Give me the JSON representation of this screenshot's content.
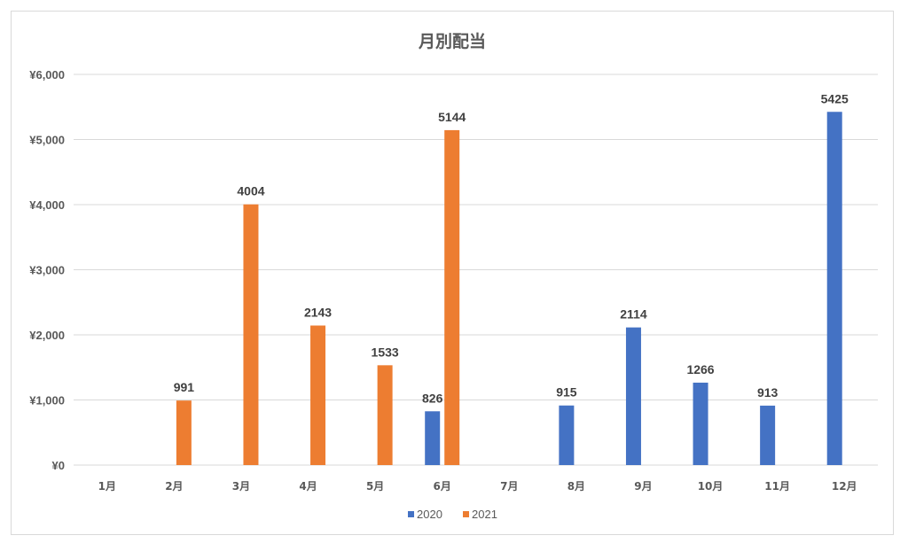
{
  "chart_data": {
    "type": "bar",
    "title": "月別配当",
    "categories": [
      "1月",
      "2月",
      "3月",
      "4月",
      "5月",
      "6月",
      "7月",
      "8月",
      "9月",
      "10月",
      "11月",
      "12月"
    ],
    "series": [
      {
        "name": "2020",
        "color": "#4472c4",
        "values": [
          null,
          null,
          null,
          null,
          null,
          826,
          null,
          915,
          2114,
          1266,
          913,
          5425
        ]
      },
      {
        "name": "2021",
        "color": "#ed7d31",
        "values": [
          null,
          991,
          4004,
          2143,
          1533,
          5144,
          null,
          null,
          null,
          null,
          null,
          null
        ]
      }
    ],
    "ylim": [
      0,
      6000
    ],
    "yticks": [
      0,
      1000,
      2000,
      3000,
      4000,
      5000,
      6000
    ],
    "ytick_labels": [
      "¥0",
      "¥1,000",
      "¥2,000",
      "¥3,000",
      "¥4,000",
      "¥5,000",
      "¥6,000"
    ],
    "grid": true,
    "legend_position": "bottom",
    "data_labels": true
  }
}
